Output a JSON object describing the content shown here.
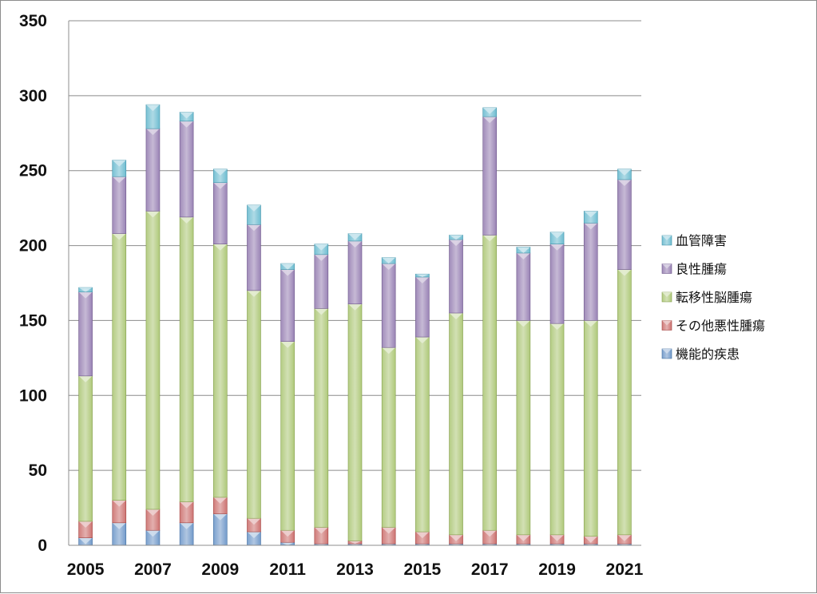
{
  "chart_data": {
    "type": "bar",
    "stacked": true,
    "categories": [
      "2005",
      "2006",
      "2007",
      "2008",
      "2009",
      "2010",
      "2011",
      "2012",
      "2013",
      "2014",
      "2015",
      "2016",
      "2017",
      "2018",
      "2019",
      "2020",
      "2021"
    ],
    "x_tick_labels": [
      "2005",
      "2007",
      "2009",
      "2011",
      "2013",
      "2015",
      "2017",
      "2019",
      "2021"
    ],
    "ylim": [
      0,
      350
    ],
    "y_ticks": [
      "0",
      "50",
      "100",
      "150",
      "200",
      "250",
      "300",
      "350"
    ],
    "grid": true,
    "legend_position": "right",
    "series": [
      {
        "name": "機能的疾患",
        "color": "#4f81bd",
        "values": [
          5,
          15,
          10,
          15,
          21,
          9,
          2,
          1,
          1,
          1,
          1,
          1,
          1,
          1,
          1,
          1,
          1
        ]
      },
      {
        "name": "その他悪性腫瘍",
        "color": "#c0504d",
        "values": [
          11,
          15,
          14,
          14,
          11,
          9,
          8,
          11,
          2,
          11,
          8,
          6,
          9,
          6,
          6,
          5,
          6
        ]
      },
      {
        "name": "転移性脳腫瘍",
        "color": "#9bbb59",
        "values": [
          97,
          178,
          199,
          190,
          169,
          152,
          126,
          146,
          158,
          120,
          130,
          148,
          197,
          143,
          141,
          144,
          177
        ]
      },
      {
        "name": "良性腫瘍",
        "color": "#8064a2",
        "values": [
          56,
          38,
          55,
          64,
          41,
          44,
          48,
          36,
          42,
          56,
          40,
          49,
          79,
          45,
          53,
          65,
          60
        ]
      },
      {
        "name": "血管障害",
        "color": "#4bacc6",
        "values": [
          3,
          11,
          16,
          6,
          9,
          13,
          4,
          7,
          5,
          4,
          2,
          3,
          6,
          4,
          8,
          8,
          7
        ]
      }
    ]
  }
}
